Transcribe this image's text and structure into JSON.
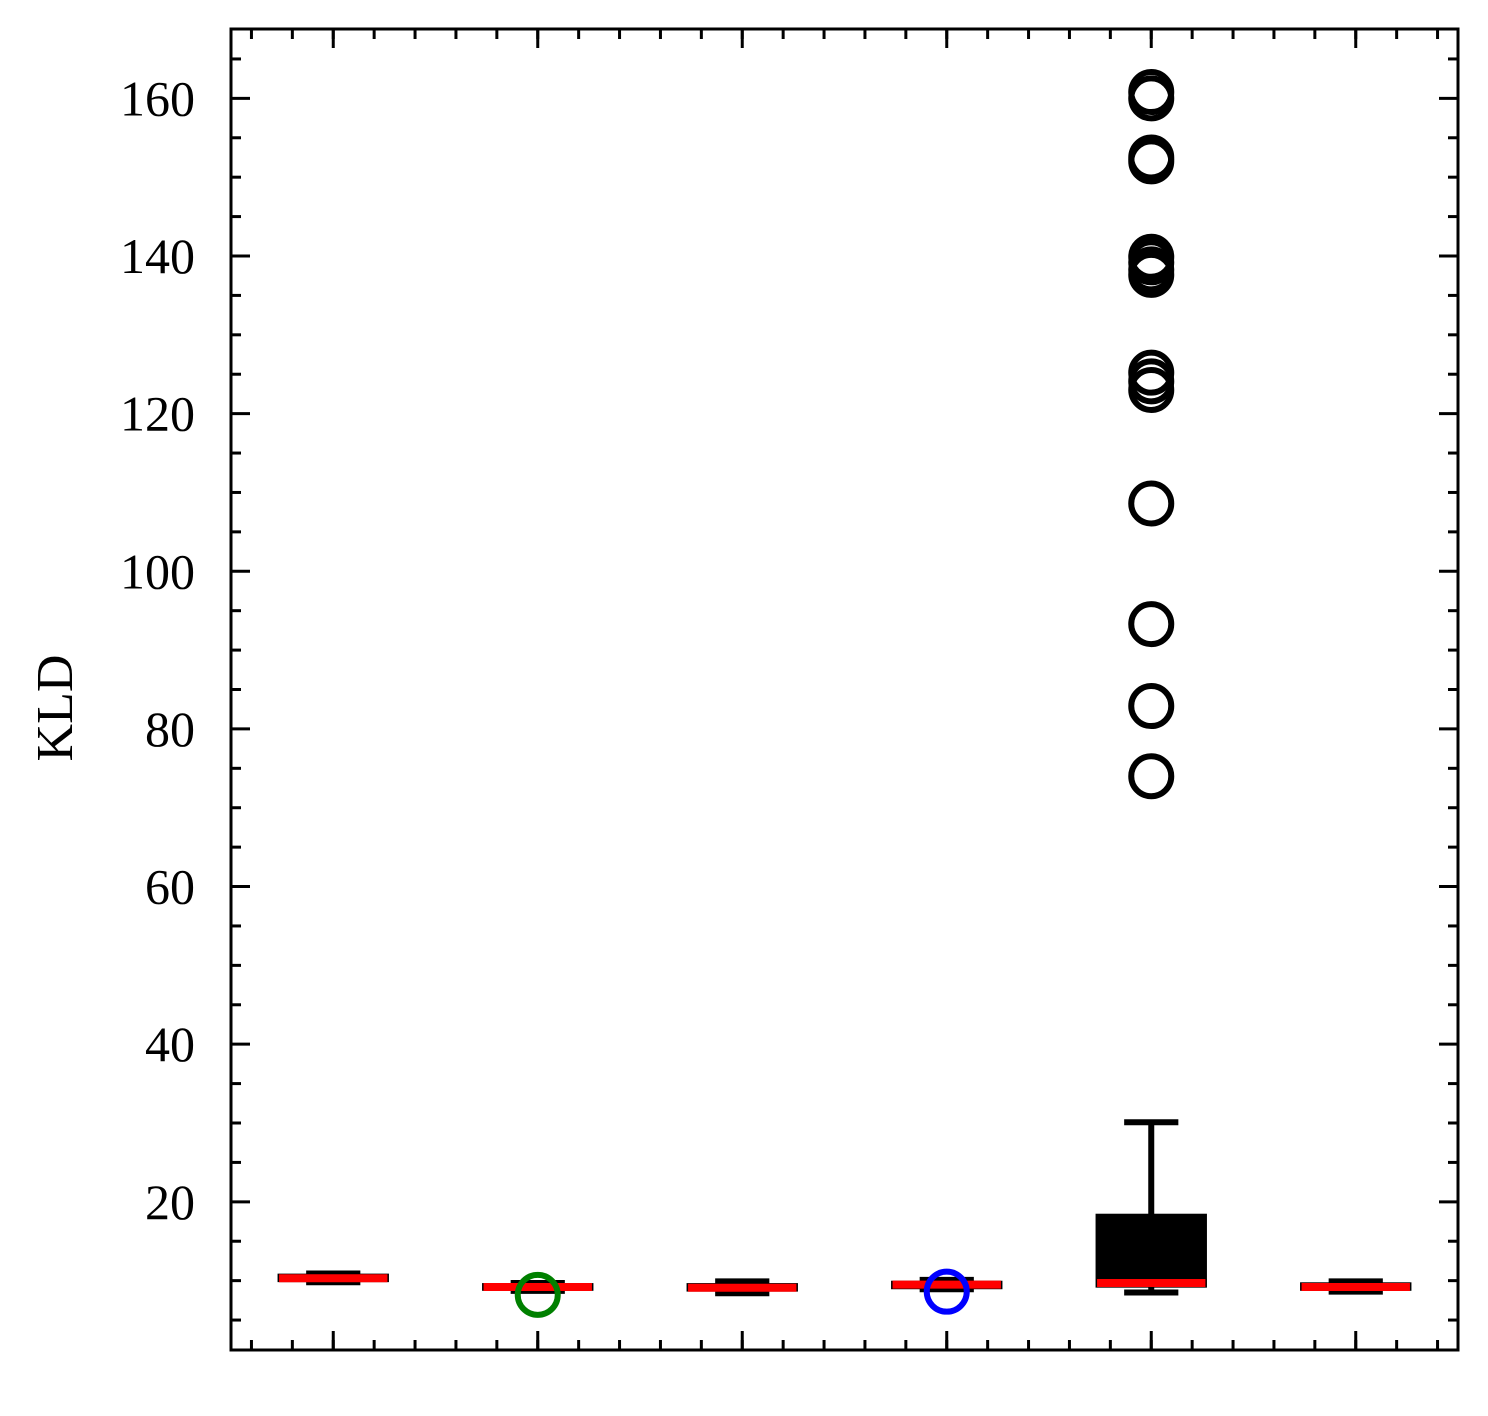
{
  "chart_data": {
    "type": "box",
    "ylabel": "KLD",
    "ylim": [
      1.2,
      168.8
    ],
    "yticks": [
      20,
      40,
      60,
      80,
      100,
      120,
      140,
      160
    ],
    "ytick_labels": [
      "20",
      "40",
      "60",
      "80",
      "100",
      "120",
      "140",
      "160"
    ],
    "y_minor_step": 5,
    "grid": false,
    "tick_direction": "in",
    "median_color": "#ff0000",
    "series": [
      {
        "q1": 10.0,
        "median": 10.3,
        "q3": 10.7,
        "whisker_low": 9.8,
        "whisker_high": 10.9,
        "color": "#000000",
        "fliers": [],
        "flier_color": "#000000"
      },
      {
        "q1": 8.9,
        "median": 9.2,
        "q3": 9.5,
        "whisker_low": 8.7,
        "whisker_high": 9.7,
        "color": "#000000",
        "fliers": [
          8.2
        ],
        "flier_color": "#008000"
      },
      {
        "q1": 8.8,
        "median": 9.1,
        "q3": 9.5,
        "whisker_low": 8.4,
        "whisker_high": 9.9,
        "color": "#000000",
        "fliers": [],
        "flier_color": "#000000"
      },
      {
        "q1": 9.1,
        "median": 9.5,
        "q3": 9.8,
        "whisker_low": 8.9,
        "whisker_high": 10.1,
        "color": "#000000",
        "fliers": [
          8.6
        ],
        "flier_color": "#0000ff"
      },
      {
        "q1": 9.3,
        "median": 9.7,
        "q3": 18.3,
        "whisker_low": 8.5,
        "whisker_high": 30.1,
        "color": "#000000",
        "fliers": [
          74.0,
          82.9,
          93.3,
          108.6,
          123.0,
          124.1,
          125.2,
          137.6,
          138.3,
          139.2,
          139.9,
          152.0,
          152.5,
          160.0,
          160.8
        ],
        "flier_color": "#000000"
      },
      {
        "q1": 8.9,
        "median": 9.2,
        "q3": 9.6,
        "whisker_low": 8.6,
        "whisker_high": 9.9,
        "color": "#000000",
        "fliers": [],
        "flier_color": "#000000"
      }
    ]
  }
}
